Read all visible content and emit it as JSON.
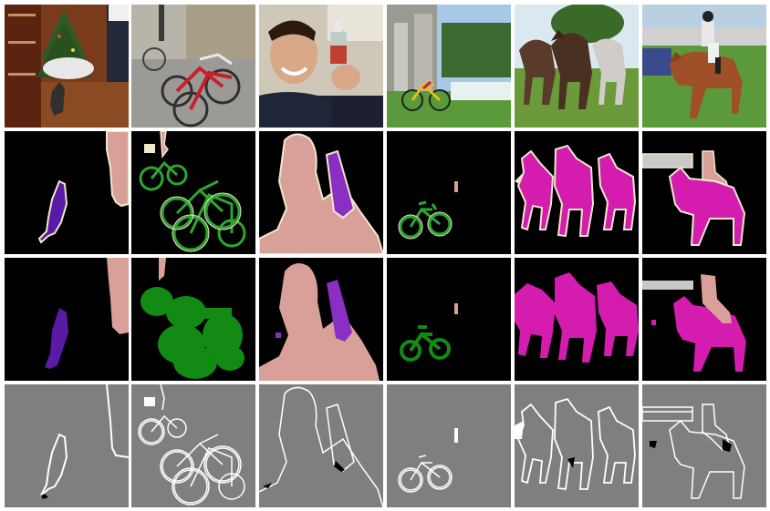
{
  "figure": {
    "columns": [
      "christmas-dog",
      "bicycles",
      "man-bottle",
      "bicycle-dam",
      "horses",
      "horse-rider"
    ],
    "rows": [
      "photo",
      "ground-truth-segmentation",
      "predicted-segmentation",
      "boundary-map"
    ]
  },
  "colors": {
    "background": "#000000",
    "boundary_background": "#7f7f7f",
    "boundary_line": "#ffffff",
    "dog": "#5b1aa6",
    "person": "#d9a09a",
    "bicycle": "#2ea62e",
    "bicycle_pred": "#138a13",
    "bottle": "#8a2ec4",
    "horse": "#d41cae",
    "contour": "#f0e8cc",
    "unlabeled": "#c8c8c8"
  }
}
